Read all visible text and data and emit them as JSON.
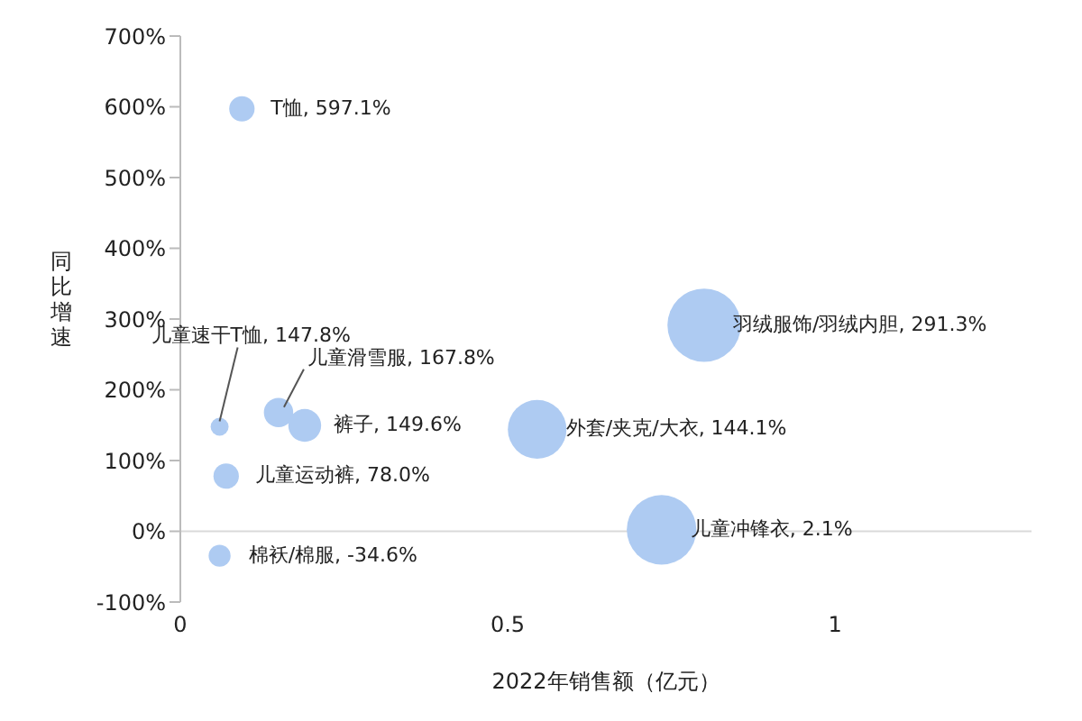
{
  "chart_data": {
    "type": "bubble",
    "xlabel": "2022年销售额（亿元）",
    "ylabel": "同比增速",
    "xlim": [
      0,
      1.3
    ],
    "xticks": [
      0,
      0.5,
      1
    ],
    "ylim": [
      -100,
      700
    ],
    "yticks": [
      {
        "value": -100,
        "label": "-100%"
      },
      {
        "value": 0,
        "label": "0%"
      },
      {
        "value": 100,
        "label": "100%"
      },
      {
        "value": 200,
        "label": "200%"
      },
      {
        "value": 300,
        "label": "300%"
      },
      {
        "value": 400,
        "label": "400%"
      },
      {
        "value": 500,
        "label": "500%"
      },
      {
        "value": 600,
        "label": "600%"
      },
      {
        "value": 700,
        "label": "700%"
      }
    ],
    "grid": false,
    "legend": false,
    "ref_lines": [
      {
        "axis": "y",
        "value": 0,
        "color": "#d9d9d9"
      }
    ],
    "series": [
      {
        "color": "#aecbf2",
        "x": [
          0.094,
          0.06,
          0.15,
          0.19,
          0.07,
          0.06,
          0.8,
          0.545,
          0.735
        ],
        "values": [
          597.1,
          147.8,
          167.8,
          149.6,
          78.0,
          -34.6,
          291.3,
          144.1,
          2.1
        ],
        "sizes": [
          0.12,
          0.06,
          0.16,
          0.2,
          0.12,
          0.09,
          1,
          0.64,
          0.9
        ],
        "value_labels": [
          "T恤, 597.1%",
          "儿童速干T恤, 147.8%",
          "儿童滑雪服, 167.8%",
          "裤子, 149.6%",
          "儿童运动裤, 78.0%",
          "棉袄/棉服, -34.6%",
          "羽绒服饰/羽绒内胆, 291.3%",
          "外套/夹克/大衣, 144.1%",
          "儿童冲锋衣, 2.1%"
        ]
      }
    ]
  }
}
